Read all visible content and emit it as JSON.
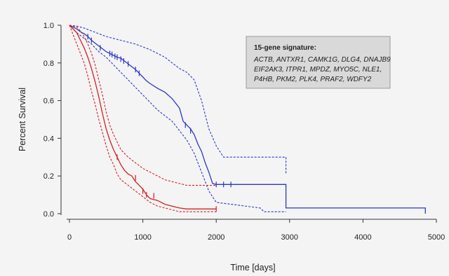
{
  "chart_data": {
    "type": "line",
    "title": "",
    "xlabel": "Time [days]",
    "ylabel": "Percent Survival",
    "xlim": [
      0,
      5000
    ],
    "ylim": [
      0,
      1.0
    ],
    "x_ticks": [
      "0",
      "1000",
      "2000",
      "3000",
      "4000",
      "5000"
    ],
    "y_ticks": [
      "0.0",
      "0.2",
      "0.4",
      "0.6",
      "0.8",
      "1.0"
    ],
    "grid": false,
    "legend": {
      "placement": "top-right",
      "title": "15-gene signature:",
      "lines": [
        "ACTB, ANTXR1, CAMK1G, DLG4, DNAJB9",
        "EIF2AK3, ITPR1, MPDZ, MYO5C, NLE1,",
        "P4HB, PKM2, PLK4, PRAF2, WDFY2"
      ]
    },
    "colors": {
      "blue": "#2a36c8",
      "red": "#d42020",
      "legend_fill": "#d9d9d9"
    },
    "series": [
      {
        "color": "blue",
        "style": "solid",
        "points": [
          [
            0,
            1.0
          ],
          [
            50,
            0.99
          ],
          [
            100,
            0.98
          ],
          [
            150,
            0.965
          ],
          [
            200,
            0.955
          ],
          [
            250,
            0.94
          ],
          [
            300,
            0.92
          ],
          [
            350,
            0.905
          ],
          [
            400,
            0.89
          ],
          [
            450,
            0.875
          ],
          [
            500,
            0.86
          ],
          [
            550,
            0.85
          ],
          [
            600,
            0.84
          ],
          [
            650,
            0.83
          ],
          [
            700,
            0.825
          ],
          [
            750,
            0.81
          ],
          [
            800,
            0.795
          ],
          [
            850,
            0.78
          ],
          [
            900,
            0.765
          ],
          [
            950,
            0.745
          ],
          [
            1000,
            0.725
          ],
          [
            1050,
            0.705
          ],
          [
            1100,
            0.69
          ],
          [
            1200,
            0.665
          ],
          [
            1300,
            0.645
          ],
          [
            1400,
            0.61
          ],
          [
            1500,
            0.56
          ],
          [
            1550,
            0.49
          ],
          [
            1600,
            0.47
          ],
          [
            1650,
            0.45
          ],
          [
            1700,
            0.42
          ],
          [
            1750,
            0.37
          ],
          [
            1800,
            0.33
          ],
          [
            1850,
            0.27
          ],
          [
            1900,
            0.22
          ],
          [
            1950,
            0.16
          ],
          [
            2000,
            0.155
          ],
          [
            2950,
            0.155
          ],
          [
            2950,
            0.03
          ],
          [
            4850,
            0.03
          ],
          [
            4850,
            0.0
          ]
        ],
        "censor": [
          [
            250,
            0.94
          ],
          [
            300,
            0.92
          ],
          [
            420,
            0.88
          ],
          [
            550,
            0.85
          ],
          [
            580,
            0.845
          ],
          [
            620,
            0.835
          ],
          [
            650,
            0.83
          ],
          [
            700,
            0.82
          ],
          [
            740,
            0.81
          ],
          [
            800,
            0.795
          ],
          [
            900,
            0.765
          ],
          [
            950,
            0.745
          ],
          [
            1580,
            0.47
          ],
          [
            1650,
            0.44
          ],
          [
            2000,
            0.155
          ],
          [
            2100,
            0.155
          ],
          [
            2200,
            0.155
          ]
        ]
      },
      {
        "color": "blue",
        "style": "dashed",
        "points": [
          [
            0,
            1.0
          ],
          [
            100,
            0.995
          ],
          [
            200,
            0.985
          ],
          [
            300,
            0.97
          ],
          [
            400,
            0.955
          ],
          [
            500,
            0.94
          ],
          [
            600,
            0.93
          ],
          [
            700,
            0.92
          ],
          [
            800,
            0.91
          ],
          [
            900,
            0.9
          ],
          [
            1000,
            0.885
          ],
          [
            1100,
            0.87
          ],
          [
            1200,
            0.85
          ],
          [
            1300,
            0.83
          ],
          [
            1400,
            0.8
          ],
          [
            1500,
            0.77
          ],
          [
            1600,
            0.75
          ],
          [
            1700,
            0.71
          ],
          [
            1800,
            0.6
          ],
          [
            1900,
            0.45
          ],
          [
            2000,
            0.36
          ],
          [
            2100,
            0.3
          ],
          [
            2950,
            0.3
          ],
          [
            2950,
            0.21
          ]
        ]
      },
      {
        "color": "blue",
        "style": "dashed",
        "points": [
          [
            0,
            1.0
          ],
          [
            100,
            0.96
          ],
          [
            200,
            0.93
          ],
          [
            300,
            0.9
          ],
          [
            400,
            0.86
          ],
          [
            500,
            0.83
          ],
          [
            600,
            0.79
          ],
          [
            700,
            0.75
          ],
          [
            800,
            0.71
          ],
          [
            900,
            0.67
          ],
          [
            1000,
            0.63
          ],
          [
            1100,
            0.59
          ],
          [
            1200,
            0.55
          ],
          [
            1300,
            0.52
          ],
          [
            1400,
            0.49
          ],
          [
            1500,
            0.44
          ],
          [
            1600,
            0.39
          ],
          [
            1700,
            0.32
          ],
          [
            1800,
            0.22
          ],
          [
            1900,
            0.12
          ],
          [
            2000,
            0.06
          ],
          [
            2600,
            0.03
          ],
          [
            2650,
            0.01
          ],
          [
            2950,
            0.01
          ]
        ]
      },
      {
        "color": "red",
        "style": "solid",
        "points": [
          [
            0,
            1.0
          ],
          [
            100,
            0.96
          ],
          [
            150,
            0.92
          ],
          [
            200,
            0.88
          ],
          [
            250,
            0.83
          ],
          [
            300,
            0.77
          ],
          [
            350,
            0.7
          ],
          [
            400,
            0.62
          ],
          [
            450,
            0.53
          ],
          [
            500,
            0.45
          ],
          [
            550,
            0.39
          ],
          [
            600,
            0.34
          ],
          [
            650,
            0.3
          ],
          [
            700,
            0.26
          ],
          [
            750,
            0.23
          ],
          [
            800,
            0.21
          ],
          [
            850,
            0.2
          ],
          [
            900,
            0.17
          ],
          [
            950,
            0.15
          ],
          [
            1000,
            0.13
          ],
          [
            1050,
            0.1
          ],
          [
            1100,
            0.08
          ],
          [
            1200,
            0.07
          ],
          [
            1300,
            0.05
          ],
          [
            1400,
            0.04
          ],
          [
            1500,
            0.03
          ],
          [
            1600,
            0.025
          ],
          [
            2000,
            0.025
          ]
        ],
        "censor": [
          [
            650,
            0.3
          ],
          [
            900,
            0.19
          ],
          [
            1000,
            0.12
          ],
          [
            1050,
            0.1
          ],
          [
            1150,
            0.095
          ],
          [
            2000,
            0.025
          ]
        ]
      },
      {
        "color": "red",
        "style": "dashed",
        "points": [
          [
            0,
            1.0
          ],
          [
            100,
            0.99
          ],
          [
            150,
            0.97
          ],
          [
            200,
            0.94
          ],
          [
            250,
            0.9
          ],
          [
            300,
            0.85
          ],
          [
            350,
            0.79
          ],
          [
            400,
            0.71
          ],
          [
            450,
            0.63
          ],
          [
            500,
            0.54
          ],
          [
            550,
            0.47
          ],
          [
            600,
            0.42
          ],
          [
            650,
            0.38
          ],
          [
            700,
            0.34
          ],
          [
            800,
            0.3
          ],
          [
            900,
            0.27
          ],
          [
            1000,
            0.24
          ],
          [
            1100,
            0.22
          ],
          [
            1200,
            0.2
          ],
          [
            1300,
            0.18
          ],
          [
            1400,
            0.17
          ],
          [
            1500,
            0.16
          ],
          [
            1600,
            0.15
          ],
          [
            2000,
            0.15
          ]
        ]
      },
      {
        "color": "red",
        "style": "dashed",
        "points": [
          [
            0,
            1.0
          ],
          [
            50,
            0.95
          ],
          [
            100,
            0.9
          ],
          [
            150,
            0.85
          ],
          [
            200,
            0.8
          ],
          [
            250,
            0.73
          ],
          [
            300,
            0.65
          ],
          [
            350,
            0.58
          ],
          [
            400,
            0.5
          ],
          [
            450,
            0.43
          ],
          [
            500,
            0.36
          ],
          [
            550,
            0.3
          ],
          [
            600,
            0.26
          ],
          [
            650,
            0.21
          ],
          [
            700,
            0.18
          ],
          [
            800,
            0.15
          ],
          [
            900,
            0.12
          ],
          [
            1000,
            0.09
          ],
          [
            1100,
            0.06
          ],
          [
            1200,
            0.04
          ],
          [
            1300,
            0.03
          ],
          [
            1400,
            0.02
          ],
          [
            1500,
            0.01
          ],
          [
            2000,
            0.01
          ]
        ]
      }
    ]
  }
}
